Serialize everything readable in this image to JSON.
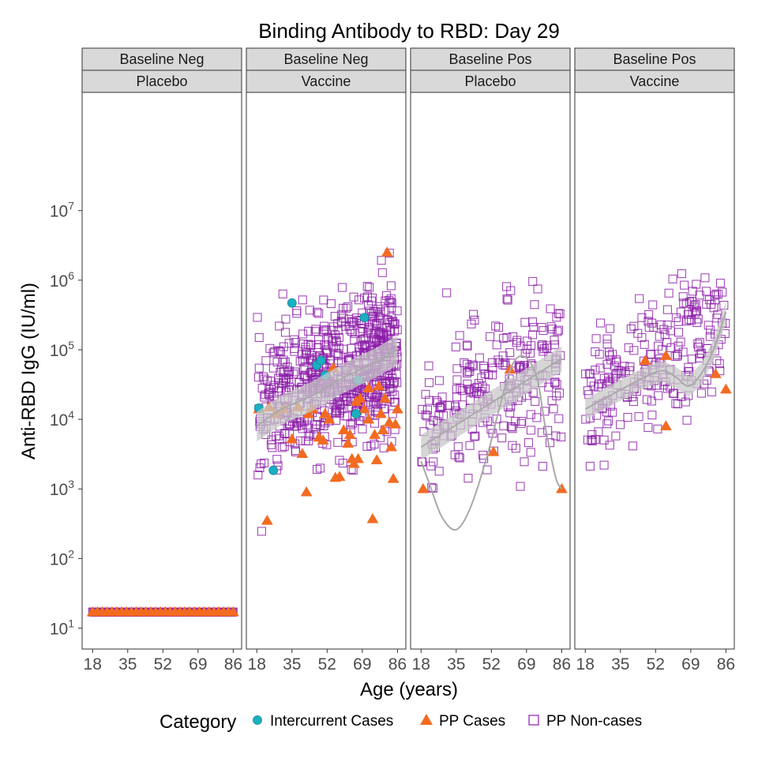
{
  "chart_data": {
    "type": "scatter",
    "title": "Binding Antibody to RBD: Day 29",
    "xlabel": "Age (years)",
    "ylabel": "Anti-RBD IgG (IU/ml)",
    "y_scale": "log10",
    "ylim": [
      5,
      500000000
    ],
    "xlim": [
      16,
      87
    ],
    "x_ticks": [
      18,
      35,
      52,
      69,
      86
    ],
    "y_ticks": [
      {
        "value": 10,
        "base": "10",
        "exp": "1"
      },
      {
        "value": 100,
        "base": "10",
        "exp": "2"
      },
      {
        "value": 1000,
        "base": "10",
        "exp": "3"
      },
      {
        "value": 10000,
        "base": "10",
        "exp": "4"
      },
      {
        "value": 100000,
        "base": "10",
        "exp": "5"
      },
      {
        "value": 1000000,
        "base": "10",
        "exp": "6"
      },
      {
        "value": 10000000,
        "base": "10",
        "exp": "7"
      }
    ],
    "grid": false,
    "legend_placement": "bottom",
    "legend": {
      "title": "Category",
      "entries": [
        {
          "label": "Intercurrent Cases",
          "shape": "circle",
          "color": "#1AAFC1"
        },
        {
          "label": "PP Cases",
          "shape": "triangle",
          "color": "#F26B21"
        },
        {
          "label": "PP Non-cases",
          "shape": "square-open",
          "color": "#8B1DA8"
        }
      ]
    },
    "colors": {
      "intercurrent": "#1AAFC1",
      "cases": "#F26B21",
      "noncases": "#8B1DA8",
      "smooth": "#A9A9A9",
      "band": "#C8C8C8",
      "strip_bg": "#D9D9D9"
    },
    "panels": [
      {
        "strip_top": "Baseline Neg",
        "strip_bottom": "Placebo",
        "noncases": {
          "x_range": [
            18,
            86
          ],
          "y_constant": 17,
          "count": 180
        },
        "cases": {
          "x_range": [
            18,
            86
          ],
          "y_constant": 17,
          "count": 30
        },
        "intercurrent": [],
        "smooth": null
      },
      {
        "strip_top": "Baseline Neg",
        "strip_bottom": "Vaccine",
        "noncases": {
          "x_range": [
            18,
            86
          ],
          "y_log10_at_x18": 4.1,
          "y_log10_at_x86": 5.0,
          "spread_log10": 0.5,
          "count": 700
        },
        "cases": [
          [
            19,
            14000
          ],
          [
            23,
            350
          ],
          [
            24,
            15000
          ],
          [
            27,
            12000
          ],
          [
            31,
            14000
          ],
          [
            35,
            5200
          ],
          [
            38,
            15000
          ],
          [
            40,
            3200
          ],
          [
            42,
            900
          ],
          [
            43,
            12000
          ],
          [
            45,
            14000
          ],
          [
            48,
            5500
          ],
          [
            50,
            5000
          ],
          [
            51,
            12000
          ],
          [
            53,
            10000
          ],
          [
            55,
            55000
          ],
          [
            56,
            1450
          ],
          [
            58,
            1500
          ],
          [
            60,
            7000
          ],
          [
            62,
            4500
          ],
          [
            63,
            6000
          ],
          [
            64,
            2700
          ],
          [
            65,
            2300
          ],
          [
            67,
            2700
          ],
          [
            68,
            20000
          ],
          [
            70,
            14000
          ],
          [
            72,
            10000
          ],
          [
            74,
            370
          ],
          [
            75,
            6000
          ],
          [
            76,
            2600
          ],
          [
            77,
            30000
          ],
          [
            78,
            12000
          ],
          [
            79,
            7000
          ],
          [
            80,
            20000
          ],
          [
            81,
            2500000
          ],
          [
            82,
            9000
          ],
          [
            83,
            4000
          ],
          [
            84,
            1400
          ],
          [
            85,
            8500
          ],
          [
            86,
            14000
          ],
          [
            72,
            28000
          ],
          [
            66,
            18000
          ]
        ],
        "intercurrent": [
          [
            19,
            14500
          ],
          [
            26,
            1850
          ],
          [
            35,
            470000
          ],
          [
            47,
            60000
          ],
          [
            49,
            70000
          ],
          [
            51,
            43000
          ],
          [
            66,
            12000
          ],
          [
            67,
            37000
          ],
          [
            70,
            290000
          ]
        ],
        "smooth": {
          "x": [
            18,
            30,
            45,
            60,
            75,
            86
          ],
          "y": [
            8000,
            14000,
            22000,
            40000,
            65000,
            100000
          ],
          "band_lo_ratio": 0.6,
          "band_hi_ratio": 1.6
        }
      },
      {
        "strip_top": "Baseline Pos",
        "strip_bottom": "Placebo",
        "noncases": {
          "x_range": [
            18,
            86
          ],
          "y_log10_at_x18": 3.9,
          "y_log10_at_x86": 4.9,
          "spread_log10": 0.55,
          "count": 260
        },
        "cases": [
          [
            19,
            1000
          ],
          [
            53,
            3400
          ],
          [
            61,
            52000
          ],
          [
            86,
            1000
          ]
        ],
        "intercurrent": [],
        "smooth": {
          "x": [
            18,
            22,
            28,
            35,
            42,
            50,
            56,
            62,
            68,
            74,
            78,
            83,
            86
          ],
          "y": [
            2500,
            1200,
            400,
            260,
            550,
            3000,
            15000,
            60000,
            80000,
            40000,
            8000,
            1500,
            1000
          ],
          "band_lo_ratio": 0.0,
          "band_hi_ratio": 0.0
        },
        "trend": {
          "x": [
            18,
            86
          ],
          "y": [
            4000,
            75000
          ],
          "band_lo_ratio": 0.65,
          "band_hi_ratio": 1.5
        }
      },
      {
        "strip_top": "Baseline Pos",
        "strip_bottom": "Vaccine",
        "noncases": {
          "x_range": [
            18,
            86
          ],
          "y_log10_at_x18": 4.2,
          "y_log10_at_x86": 5.3,
          "spread_log10": 0.5,
          "count": 240
        },
        "cases": [
          [
            47,
            70000
          ],
          [
            57,
            82000
          ],
          [
            57,
            8000
          ],
          [
            81,
            45000
          ],
          [
            86,
            27000
          ]
        ],
        "intercurrent": [],
        "smooth": {
          "x": [
            18,
            30,
            45,
            55,
            62,
            68,
            74,
            80,
            86
          ],
          "y": [
            14000,
            22000,
            38000,
            50000,
            40000,
            30000,
            45000,
            100000,
            350000
          ],
          "band_lo_ratio": 0.7,
          "band_hi_ratio": 1.4
        }
      }
    ]
  }
}
